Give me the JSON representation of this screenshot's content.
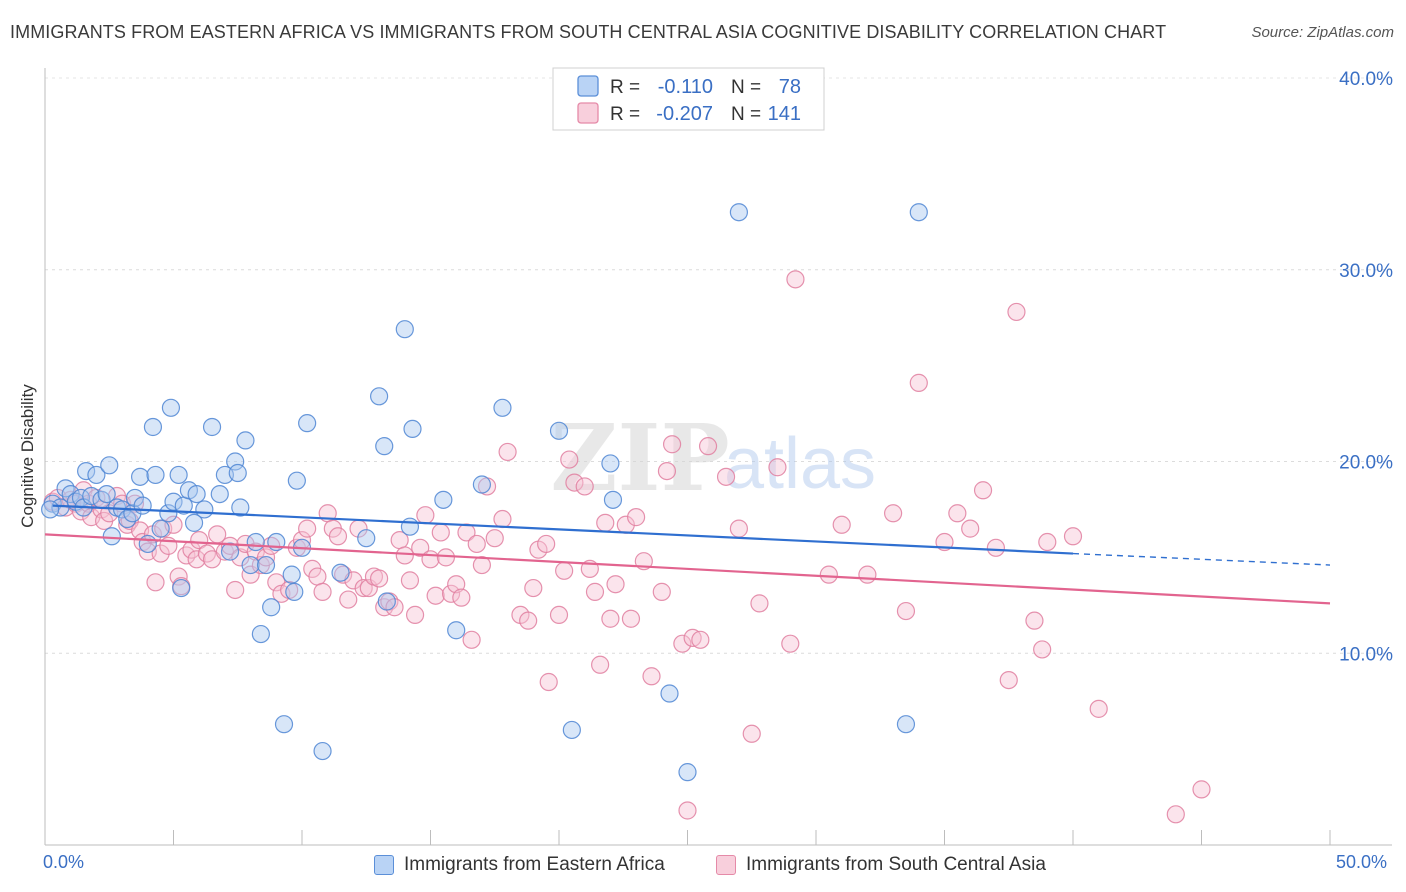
{
  "title": "IMMIGRANTS FROM EASTERN AFRICA VS IMMIGRANTS FROM SOUTH CENTRAL ASIA COGNITIVE DISABILITY CORRELATION CHART",
  "source": "Source: ZipAtlas.com",
  "watermark": {
    "zip": "ZIP",
    "atlas": "atlas"
  },
  "colors": {
    "blue": "#3a78d6",
    "pink": "#e8608f",
    "axis_text": "#3a6fc4"
  },
  "legend_top": {
    "rows": [
      {
        "r_label": "R =",
        "r_value": "-0.110",
        "n_label": "N =",
        "n_value": "78"
      },
      {
        "r_label": "R =",
        "r_value": "-0.207",
        "n_label": "N =",
        "n_value": "141"
      }
    ]
  },
  "chart_data": {
    "type": "scatter",
    "xlabel": "",
    "ylabel": "Cognitive Disability",
    "xlim": [
      0,
      50
    ],
    "ylim": [
      0,
      40
    ],
    "x_tick_labels": [
      "0.0%",
      "50.0%"
    ],
    "y_ticks": [
      10,
      20,
      30,
      40
    ],
    "y_tick_labels": [
      "10.0%",
      "20.0%",
      "30.0%",
      "40.0%"
    ],
    "grid": true,
    "series": [
      {
        "name": "Immigrants from Eastern Africa",
        "color": "#3a78d6",
        "trend": {
          "x0": 0.3,
          "y0": 17.7,
          "x1": 40,
          "y1": 15.2,
          "dash_to_x": 50,
          "dash_to_y": 14.6
        },
        "points": [
          [
            0.3,
            17.8
          ],
          [
            0.6,
            17.6
          ],
          [
            0.8,
            18.6
          ],
          [
            1.0,
            18.3
          ],
          [
            1.2,
            17.9
          ],
          [
            1.4,
            18.1
          ],
          [
            1.5,
            17.6
          ],
          [
            1.6,
            19.5
          ],
          [
            1.8,
            18.2
          ],
          [
            2.0,
            19.3
          ],
          [
            2.2,
            18.0
          ],
          [
            2.4,
            18.3
          ],
          [
            2.5,
            19.8
          ],
          [
            2.6,
            16.1
          ],
          [
            2.8,
            17.6
          ],
          [
            3.0,
            17.5
          ],
          [
            3.2,
            17.0
          ],
          [
            3.4,
            17.3
          ],
          [
            3.5,
            18.1
          ],
          [
            3.7,
            19.2
          ],
          [
            3.8,
            17.7
          ],
          [
            4.0,
            15.7
          ],
          [
            4.2,
            21.8
          ],
          [
            4.3,
            19.3
          ],
          [
            4.5,
            16.5
          ],
          [
            4.8,
            17.3
          ],
          [
            4.9,
            22.8
          ],
          [
            5.0,
            17.9
          ],
          [
            5.2,
            19.3
          ],
          [
            5.3,
            13.4
          ],
          [
            5.4,
            17.7
          ],
          [
            5.6,
            18.5
          ],
          [
            5.8,
            16.8
          ],
          [
            5.9,
            18.3
          ],
          [
            6.2,
            17.5
          ],
          [
            6.5,
            21.8
          ],
          [
            6.8,
            18.3
          ],
          [
            7.0,
            19.3
          ],
          [
            7.2,
            15.3
          ],
          [
            7.4,
            20.0
          ],
          [
            7.5,
            19.4
          ],
          [
            7.6,
            17.6
          ],
          [
            7.8,
            21.1
          ],
          [
            8.0,
            14.6
          ],
          [
            8.2,
            15.8
          ],
          [
            8.4,
            11.0
          ],
          [
            8.6,
            14.6
          ],
          [
            8.8,
            12.4
          ],
          [
            9.0,
            15.8
          ],
          [
            9.3,
            6.3
          ],
          [
            9.6,
            14.1
          ],
          [
            9.7,
            13.2
          ],
          [
            9.8,
            19.0
          ],
          [
            10.0,
            15.5
          ],
          [
            10.2,
            22.0
          ],
          [
            10.8,
            4.9
          ],
          [
            11.5,
            14.2
          ],
          [
            12.5,
            16.0
          ],
          [
            13.0,
            23.4
          ],
          [
            13.2,
            20.8
          ],
          [
            13.3,
            12.7
          ],
          [
            14.0,
            26.9
          ],
          [
            14.2,
            16.6
          ],
          [
            14.3,
            21.7
          ],
          [
            15.5,
            18.0
          ],
          [
            16.0,
            11.2
          ],
          [
            17.0,
            18.8
          ],
          [
            17.8,
            22.8
          ],
          [
            20.0,
            21.6
          ],
          [
            20.5,
            6.0
          ],
          [
            22.0,
            19.9
          ],
          [
            22.1,
            18.0
          ],
          [
            24.3,
            7.9
          ],
          [
            25.0,
            3.8
          ],
          [
            27.0,
            33.0
          ],
          [
            33.5,
            6.3
          ],
          [
            34.0,
            33.0
          ],
          [
            0.2,
            17.5
          ]
        ]
      },
      {
        "name": "Immigrants from South Central Asia",
        "color": "#e8608f",
        "trend": {
          "x0": 0.0,
          "y0": 16.2,
          "x1": 50,
          "y1": 12.6
        },
        "points": [
          [
            0.3,
            17.9
          ],
          [
            0.5,
            18.1
          ],
          [
            0.8,
            17.6
          ],
          [
            1.0,
            18.0
          ],
          [
            1.2,
            17.8
          ],
          [
            1.4,
            17.4
          ],
          [
            1.5,
            18.5
          ],
          [
            1.7,
            17.8
          ],
          [
            1.8,
            17.1
          ],
          [
            2.0,
            18.1
          ],
          [
            2.2,
            17.5
          ],
          [
            2.3,
            16.9
          ],
          [
            2.5,
            17.3
          ],
          [
            2.8,
            18.2
          ],
          [
            3.0,
            17.8
          ],
          [
            3.2,
            16.7
          ],
          [
            3.3,
            16.9
          ],
          [
            3.5,
            17.8
          ],
          [
            3.7,
            16.4
          ],
          [
            3.8,
            15.8
          ],
          [
            4.0,
            15.3
          ],
          [
            4.2,
            16.2
          ],
          [
            4.3,
            13.7
          ],
          [
            4.5,
            15.2
          ],
          [
            4.6,
            16.5
          ],
          [
            4.8,
            15.6
          ],
          [
            5.0,
            16.7
          ],
          [
            5.2,
            14.0
          ],
          [
            5.3,
            13.5
          ],
          [
            5.5,
            15.1
          ],
          [
            5.7,
            15.4
          ],
          [
            5.9,
            14.9
          ],
          [
            6.0,
            15.9
          ],
          [
            6.3,
            15.2
          ],
          [
            6.5,
            14.9
          ],
          [
            6.7,
            16.2
          ],
          [
            7.0,
            15.3
          ],
          [
            7.2,
            15.6
          ],
          [
            7.4,
            13.3
          ],
          [
            7.6,
            15.0
          ],
          [
            7.8,
            15.7
          ],
          [
            8.0,
            14.1
          ],
          [
            8.2,
            15.3
          ],
          [
            8.4,
            14.6
          ],
          [
            8.6,
            15.0
          ],
          [
            8.8,
            15.6
          ],
          [
            9.0,
            13.7
          ],
          [
            9.2,
            13.1
          ],
          [
            9.5,
            13.3
          ],
          [
            9.8,
            15.5
          ],
          [
            10.0,
            15.9
          ],
          [
            10.2,
            16.5
          ],
          [
            10.4,
            14.4
          ],
          [
            10.6,
            14.0
          ],
          [
            10.8,
            13.2
          ],
          [
            11.0,
            17.3
          ],
          [
            11.2,
            16.5
          ],
          [
            11.4,
            16.1
          ],
          [
            11.6,
            14.1
          ],
          [
            11.8,
            12.8
          ],
          [
            12.0,
            13.8
          ],
          [
            12.2,
            16.5
          ],
          [
            12.4,
            13.4
          ],
          [
            12.6,
            13.4
          ],
          [
            12.8,
            14.0
          ],
          [
            13.0,
            13.9
          ],
          [
            13.2,
            12.4
          ],
          [
            13.4,
            12.7
          ],
          [
            13.6,
            12.4
          ],
          [
            13.8,
            15.9
          ],
          [
            14.0,
            15.1
          ],
          [
            14.2,
            13.8
          ],
          [
            14.4,
            12.0
          ],
          [
            14.6,
            15.5
          ],
          [
            14.8,
            17.2
          ],
          [
            15.0,
            14.9
          ],
          [
            15.2,
            13.0
          ],
          [
            15.4,
            16.3
          ],
          [
            15.6,
            15.0
          ],
          [
            15.8,
            13.1
          ],
          [
            16.0,
            13.6
          ],
          [
            16.2,
            12.9
          ],
          [
            16.4,
            16.3
          ],
          [
            16.6,
            10.7
          ],
          [
            16.8,
            15.7
          ],
          [
            17.0,
            14.6
          ],
          [
            17.2,
            18.7
          ],
          [
            17.5,
            16.0
          ],
          [
            17.8,
            17.0
          ],
          [
            18.0,
            20.5
          ],
          [
            18.5,
            12.0
          ],
          [
            18.8,
            11.7
          ],
          [
            19.0,
            13.4
          ],
          [
            19.2,
            15.4
          ],
          [
            19.5,
            15.7
          ],
          [
            19.6,
            8.5
          ],
          [
            20.0,
            12.0
          ],
          [
            20.2,
            14.3
          ],
          [
            20.4,
            20.1
          ],
          [
            20.6,
            18.9
          ],
          [
            21.0,
            18.7
          ],
          [
            21.2,
            14.4
          ],
          [
            21.4,
            13.2
          ],
          [
            21.6,
            9.4
          ],
          [
            21.8,
            16.8
          ],
          [
            22.0,
            11.8
          ],
          [
            22.2,
            13.6
          ],
          [
            22.6,
            16.7
          ],
          [
            22.8,
            11.8
          ],
          [
            23.0,
            17.1
          ],
          [
            23.3,
            14.8
          ],
          [
            23.6,
            8.8
          ],
          [
            24.0,
            13.2
          ],
          [
            24.2,
            19.5
          ],
          [
            24.4,
            20.9
          ],
          [
            24.8,
            10.5
          ],
          [
            25.2,
            10.8
          ],
          [
            25.5,
            10.7
          ],
          [
            25.8,
            20.8
          ],
          [
            26.5,
            19.2
          ],
          [
            27.0,
            16.5
          ],
          [
            27.5,
            5.8
          ],
          [
            27.8,
            12.6
          ],
          [
            28.5,
            19.7
          ],
          [
            29.0,
            10.5
          ],
          [
            29.2,
            29.5
          ],
          [
            30.5,
            14.1
          ],
          [
            31.0,
            16.7
          ],
          [
            32.0,
            14.1
          ],
          [
            33.0,
            17.3
          ],
          [
            33.5,
            12.2
          ],
          [
            34.0,
            24.1
          ],
          [
            35.0,
            15.8
          ],
          [
            35.5,
            17.3
          ],
          [
            36.0,
            16.5
          ],
          [
            36.5,
            18.5
          ],
          [
            37.0,
            15.5
          ],
          [
            37.5,
            8.6
          ],
          [
            37.8,
            27.8
          ],
          [
            38.5,
            11.7
          ],
          [
            38.8,
            10.2
          ],
          [
            39.0,
            15.8
          ],
          [
            40.0,
            16.1
          ],
          [
            41.0,
            7.1
          ],
          [
            44.0,
            1.6
          ],
          [
            45.0,
            2.9
          ],
          [
            25.0,
            1.8
          ]
        ]
      }
    ]
  }
}
